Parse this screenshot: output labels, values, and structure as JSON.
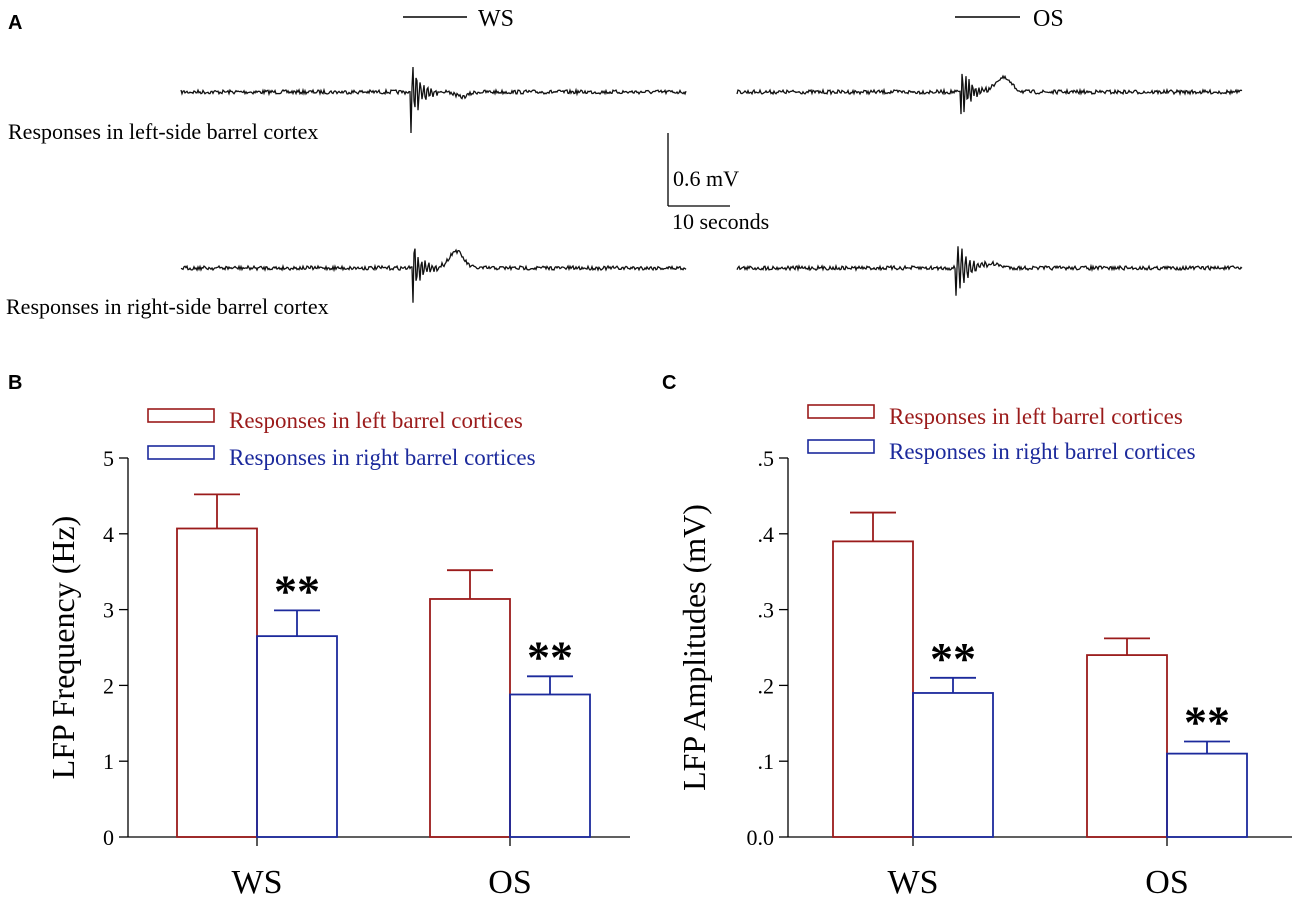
{
  "colors": {
    "left": "#9b1b1b",
    "right": "#1c2a9c",
    "trace": "#111111",
    "axis": "#000000"
  },
  "panel_a": {
    "letter": "A",
    "stim_ws": "WS",
    "stim_os": "OS",
    "row_left_label": "Responses in left-side barrel cortex",
    "row_right_label": "Responses in right-side barrel cortex",
    "scale_voltage": "0.6 mV",
    "scale_time": "10 seconds"
  },
  "chart_data": [
    {
      "type": "bar",
      "panel": "B",
      "categories": [
        "WS",
        "OS"
      ],
      "series": [
        {
          "name": "Responses in left barrel cortices",
          "values": [
            4.07,
            3.14
          ],
          "errors": [
            0.45,
            0.38
          ]
        },
        {
          "name": "Responses in right barrel cortices",
          "values": [
            2.65,
            1.88
          ],
          "errors": [
            0.34,
            0.24
          ]
        }
      ],
      "significance": [
        "**",
        "**"
      ],
      "ylabel": "LFP Frequency (Hz)",
      "xlabel": "",
      "ylim": [
        0,
        5
      ],
      "yticks": [
        0,
        1,
        2,
        3,
        4,
        5
      ],
      "ytick_labels": [
        "0",
        "1",
        "2",
        "3",
        "4",
        "5"
      ],
      "legend": "top"
    },
    {
      "type": "bar",
      "panel": "C",
      "categories": [
        "WS",
        "OS"
      ],
      "series": [
        {
          "name": "Responses in left barrel cortices",
          "values": [
            0.39,
            0.24
          ],
          "errors": [
            0.038,
            0.022
          ]
        },
        {
          "name": "Responses in right barrel cortices",
          "values": [
            0.19,
            0.11
          ],
          "errors": [
            0.02,
            0.016
          ]
        }
      ],
      "significance": [
        "**",
        "**"
      ],
      "ylabel": "LFP Amplitudes (mV)",
      "xlabel": "",
      "ylim": [
        0,
        0.5
      ],
      "yticks": [
        0,
        0.1,
        0.2,
        0.3,
        0.4,
        0.5
      ],
      "ytick_labels": [
        "0.0",
        ".1",
        ".2",
        ".3",
        ".4",
        ".5"
      ],
      "legend": "top"
    }
  ]
}
